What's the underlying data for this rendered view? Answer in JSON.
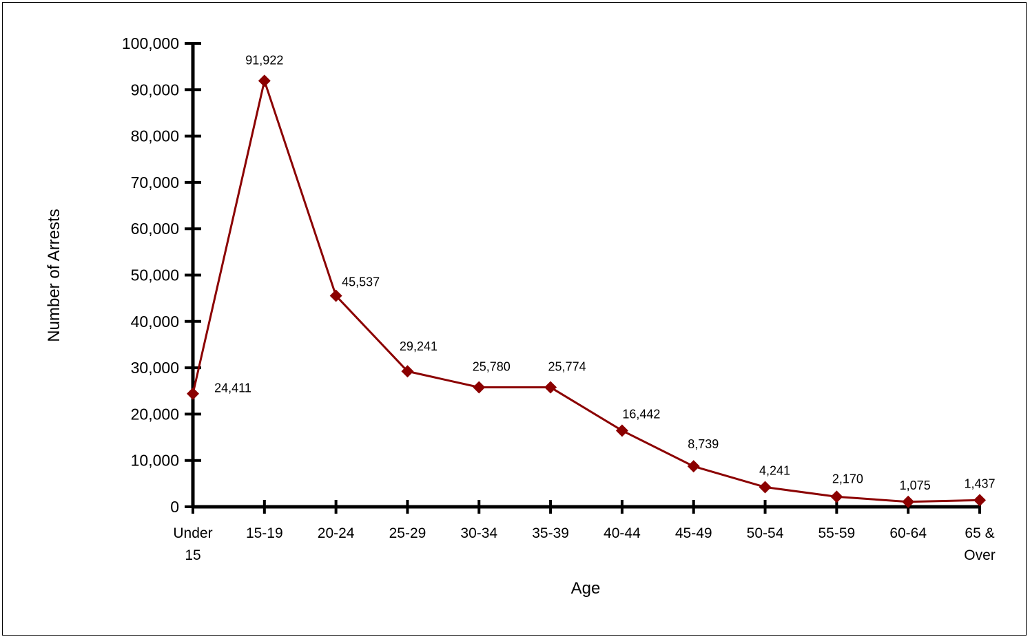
{
  "chart_data": {
    "type": "line",
    "title": "",
    "xlabel": "Age",
    "ylabel": "Number of Arrests",
    "ylim": [
      0,
      100000
    ],
    "yticks": [
      0,
      10000,
      20000,
      30000,
      40000,
      50000,
      60000,
      70000,
      80000,
      90000,
      100000
    ],
    "ytick_labels": [
      "0",
      "10,000",
      "20,000",
      "30,000",
      "40,000",
      "50,000",
      "60,000",
      "70,000",
      "80,000",
      "90,000",
      "100,000"
    ],
    "categories": [
      [
        "Under",
        "15"
      ],
      [
        "15-19"
      ],
      [
        "20-24"
      ],
      [
        "25-29"
      ],
      [
        "30-34"
      ],
      [
        "35-39"
      ],
      [
        "40-44"
      ],
      [
        "45-49"
      ],
      [
        "50-54"
      ],
      [
        "55-59"
      ],
      [
        "60-64"
      ],
      [
        "65 &",
        "Over"
      ]
    ],
    "series": [
      {
        "values": [
          24411,
          91922,
          45537,
          29241,
          25780,
          25774,
          16442,
          8739,
          4241,
          2170,
          1075,
          1437
        ],
        "data_labels": [
          "24,411",
          "91,922",
          "45,537",
          "29,241",
          "25,780",
          "25,774",
          "16,442",
          "8,739",
          "4,241",
          "2,170",
          "1,075",
          "1,437"
        ],
        "color": "#8b0000",
        "marker": "diamond"
      }
    ],
    "grid": false,
    "legend": "none"
  }
}
